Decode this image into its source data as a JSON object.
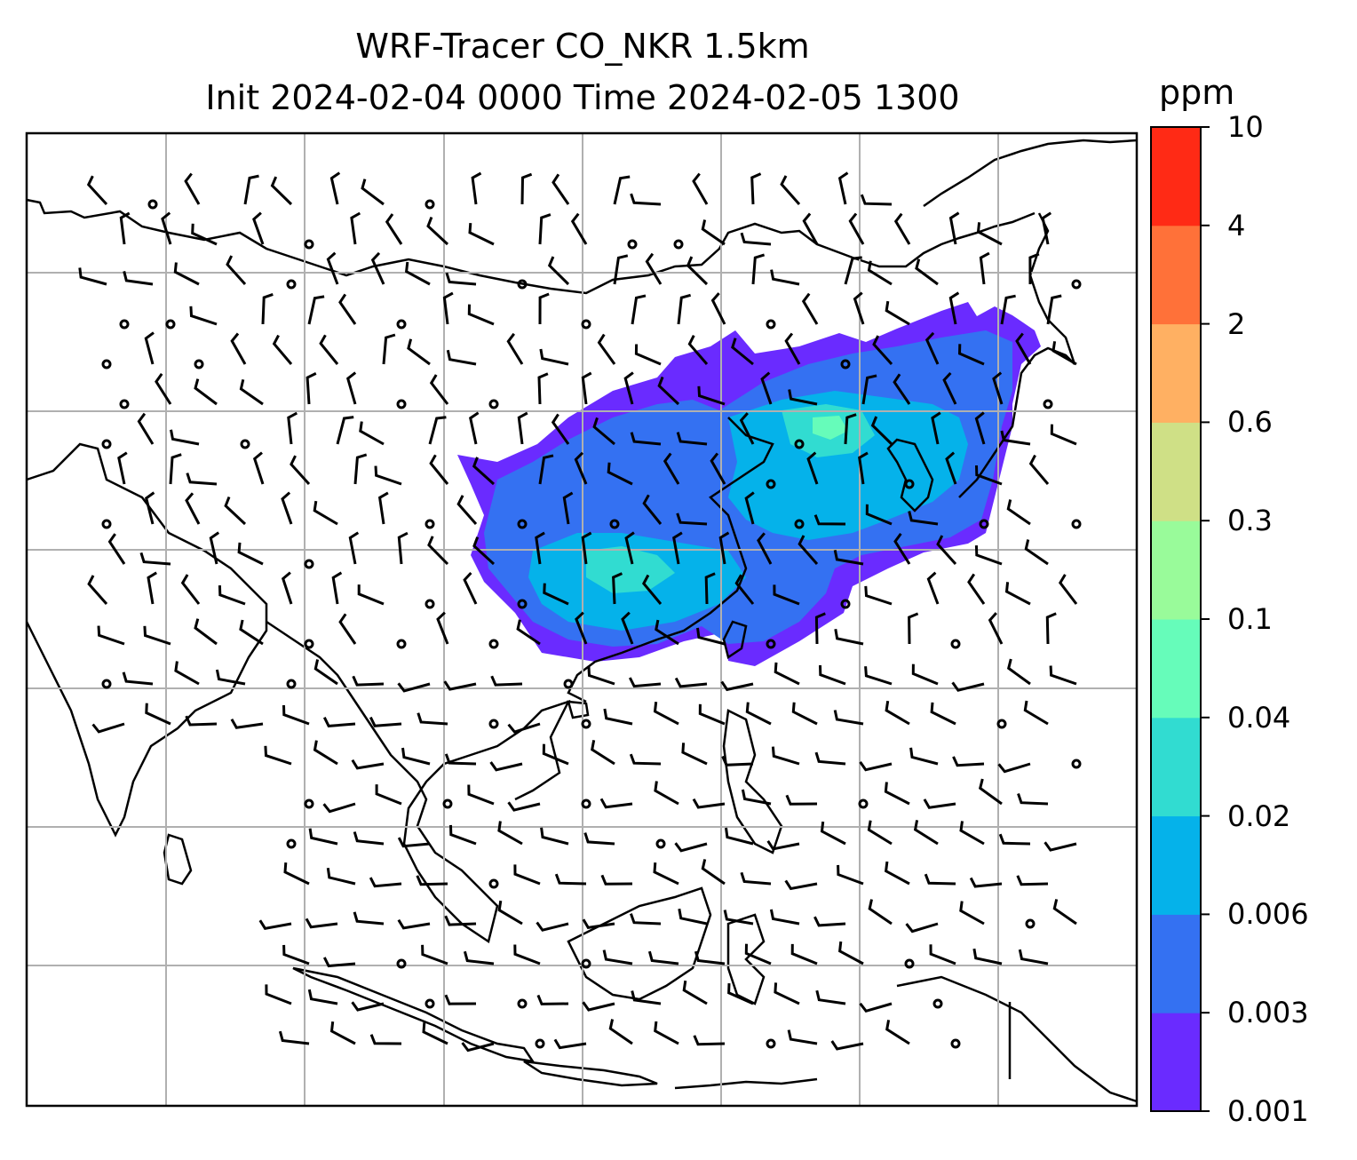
{
  "title": {
    "line1": "WRF-Tracer CO_NKR 1.5km",
    "line2": "Init 2024-02-04 0000 Time 2024-02-05 1300"
  },
  "colorbar": {
    "unit": "ppm",
    "levels": [
      "0.001",
      "0.003",
      "0.006",
      "0.02",
      "0.04",
      "0.1",
      "0.3",
      "0.6",
      "2",
      "4",
      "10"
    ],
    "colors": [
      "#6a2bff",
      "#3471f2",
      "#05b2ea",
      "#31dcd1",
      "#66fcba",
      "#99fb9a",
      "#cfe086",
      "#ffb062",
      "#ff7139",
      "#ff2a15"
    ]
  },
  "map": {
    "background": "#ffffff",
    "gridline_color": "#b0b0b0",
    "coastline_color": "#000000",
    "barb_color": "#000000"
  }
}
